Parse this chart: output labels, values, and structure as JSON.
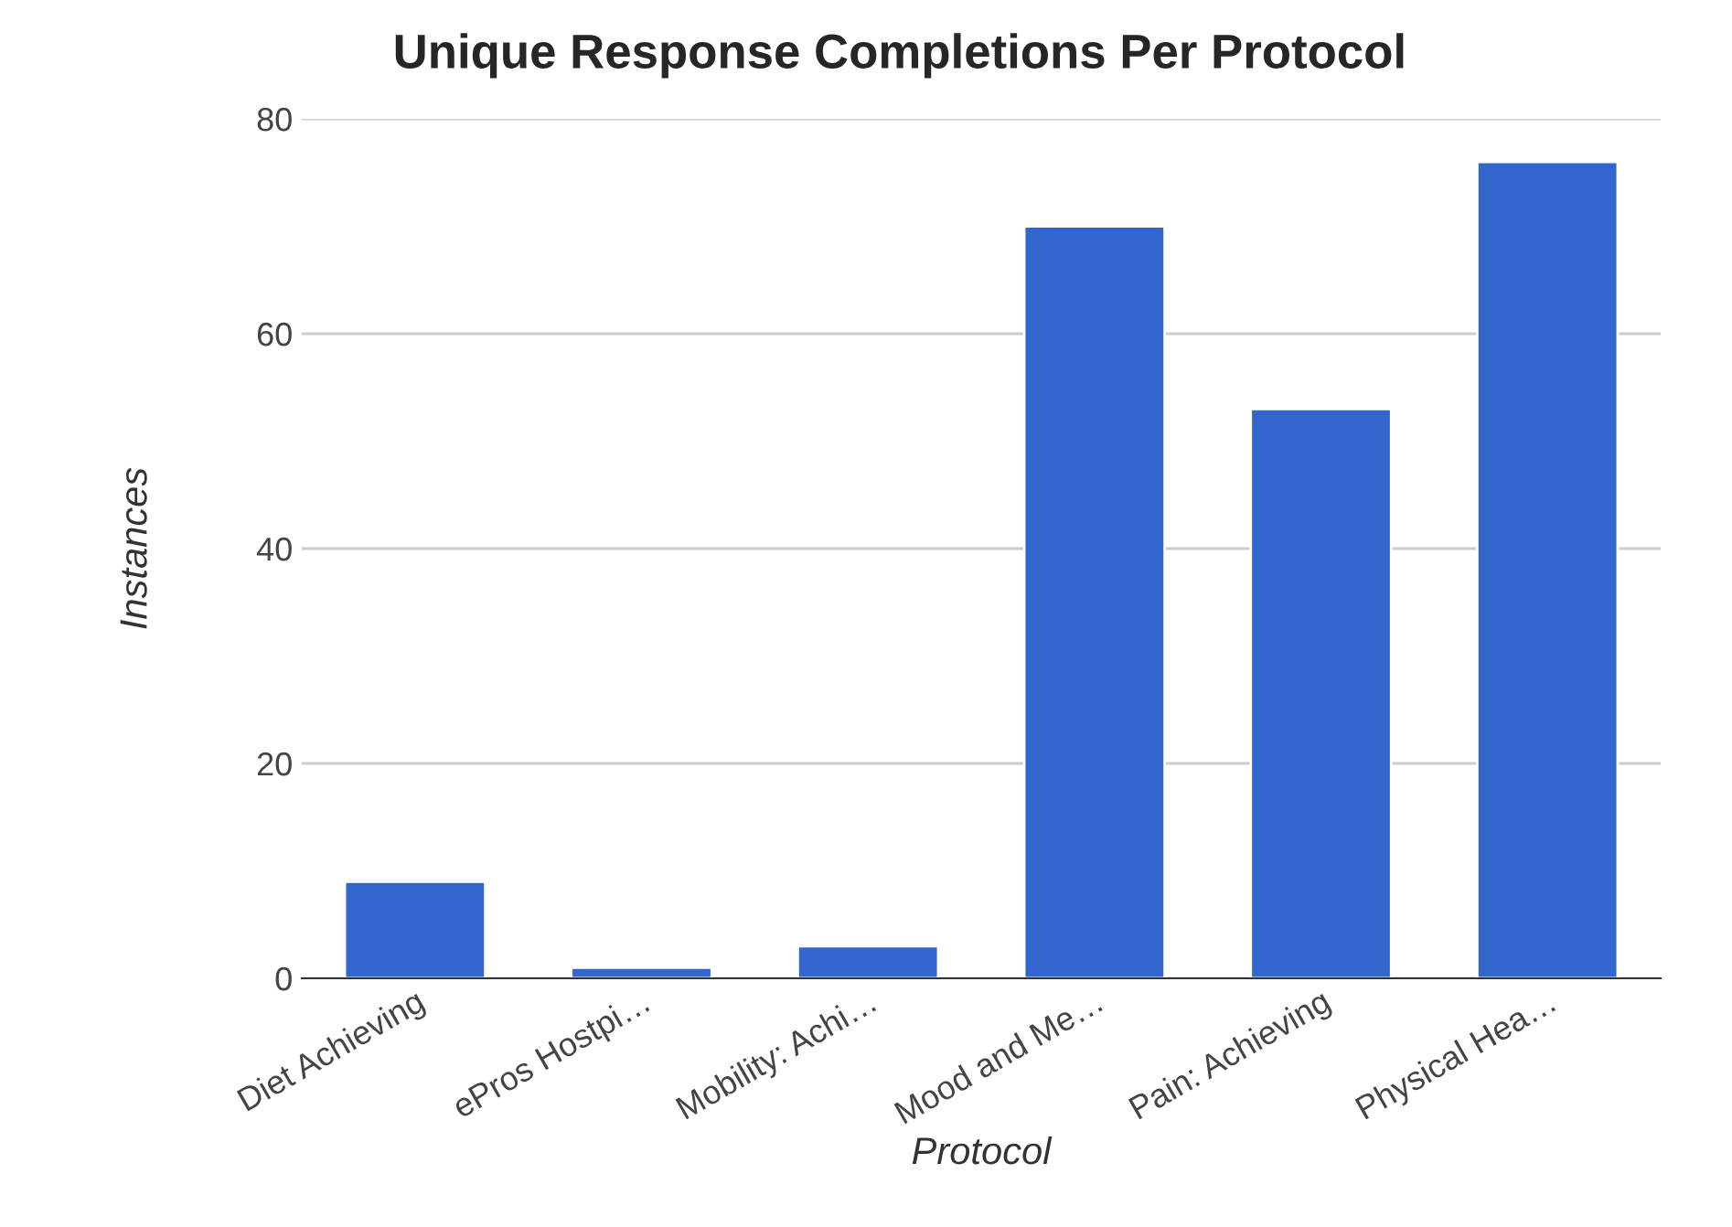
{
  "chart_data": {
    "type": "bar",
    "title": "Unique Response Completions Per Protocol",
    "xlabel": "Protocol",
    "ylabel": "Instances",
    "categories": [
      "Diet Achieving",
      "ePros Hostpi…",
      "Mobility: Achi…",
      "Mood and Me…",
      "Pain: Achieving",
      "Physical Hea…"
    ],
    "values": [
      9,
      1,
      3,
      70,
      53,
      76
    ],
    "color": "#3366cc",
    "ylim": [
      0,
      80
    ],
    "yticks": [
      0,
      20,
      40,
      60,
      80
    ],
    "grid": "y",
    "legend": false
  }
}
